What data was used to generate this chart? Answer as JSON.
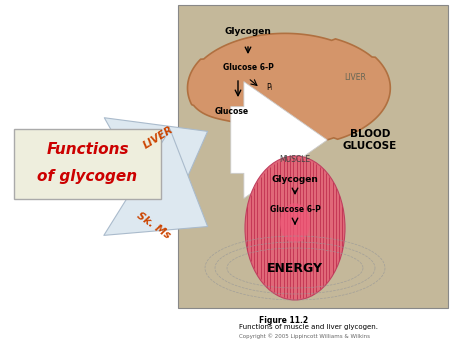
{
  "bg_color": "#ffffff",
  "panel_bg": "#c4b89a",
  "panel_border": "#888888",
  "liver_color": "#d4956a",
  "liver_edge": "#b07040",
  "muscle_color_outer": "#e06878",
  "muscle_color_inner": "#f04060",
  "muscle_line_color": "#c03050",
  "box_color": "#eeeedd",
  "box_border": "#aaaaaa",
  "arrow_fill": "#dde8f0",
  "arrow_edge": "#aabbcc",
  "red_text": "#cc0000",
  "blood_glucose_label": "BLOOD\nGLUCOSE",
  "liver_label": "LIVER",
  "muscle_label": "MUSCLE",
  "glycogen_liver": "Glycogen",
  "glucose6p_liver": "Glucose 6-P",
  "glucose_liver": "Glucose",
  "pi_label": "Pᵢ",
  "glycogen_muscle": "Glycogen",
  "glucose6p_muscle": "Glucose 6-P",
  "energy_label": "ENERGY",
  "functions_line1": "Functions",
  "functions_line2": "of glycogen",
  "liver_arrow_label": "LIVER",
  "skms_arrow_label": "Sk. Ms",
  "figure_title": "Figure 11.2",
  "figure_caption": "Functions of muscle and liver glycogen.",
  "copyright": "Copyright © 2005 Lippincott Williams & Wilkins"
}
